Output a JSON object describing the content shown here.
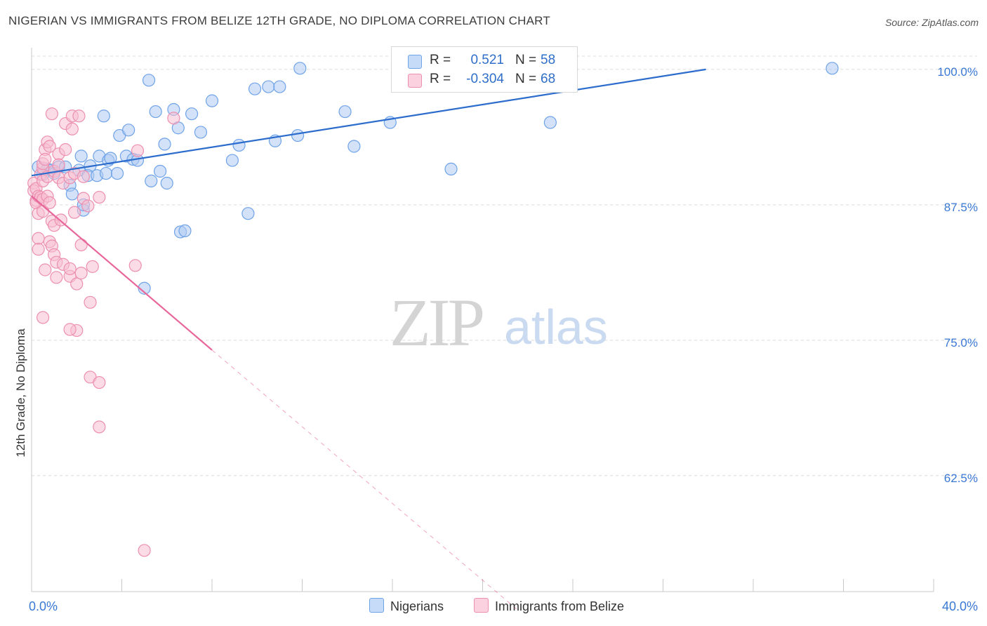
{
  "title": "NIGERIAN VS IMMIGRANTS FROM BELIZE 12TH GRADE, NO DIPLOMA CORRELATION CHART",
  "source": "Source: ZipAtlas.com",
  "watermark": {
    "zip": "ZIP",
    "atlas": "atlas"
  },
  "legend": {
    "r_label": "R =",
    "n_label": "N =",
    "rows": [
      {
        "r": "0.521",
        "n": "58",
        "color": "#6fa3e8"
      },
      {
        "r": "-0.304",
        "n": "68",
        "color": "#f29ab8"
      }
    ]
  },
  "colors": {
    "blue_fill": "#aecbf2",
    "blue_stroke": "#6fa3e8",
    "blue_line": "#2b6ccc",
    "pink_fill": "#f7bfd2",
    "pink_stroke": "#ec8fb0",
    "pink_line": "#e8679a",
    "axis_text": "#3a78d4",
    "grid": "#dcdcdc"
  },
  "chart_data": {
    "type": "scatter",
    "title": "NIGERIAN VS IMMIGRANTS FROM BELIZE 12TH GRADE, NO DIPLOMA CORRELATION CHART",
    "xlabel": "",
    "ylabel": "12th Grade, No Diploma",
    "xlim": [
      0,
      40
    ],
    "ylim": [
      51.8,
      102.0
    ],
    "x_tick_labels": [
      "0.0%",
      "40.0%"
    ],
    "y_ticks": [
      62.5,
      75.0,
      87.5,
      100.0
    ],
    "y_tick_labels": [
      "62.5%",
      "75.0%",
      "87.5%",
      "100.0%"
    ],
    "grid": true,
    "series": [
      {
        "name": "Nigerians",
        "r": 0.521,
        "n": 58,
        "trend": {
          "x": [
            0.0,
            29.9
          ],
          "y": [
            90.2,
            100.0
          ]
        },
        "points": [
          [
            0.3,
            91.0
          ],
          [
            0.5,
            90.3
          ],
          [
            0.7,
            90.8
          ],
          [
            0.9,
            90.7
          ],
          [
            1.2,
            91.0
          ],
          [
            1.5,
            91.0
          ],
          [
            1.7,
            89.3
          ],
          [
            1.8,
            88.5
          ],
          [
            2.1,
            90.7
          ],
          [
            2.2,
            92.0
          ],
          [
            2.3,
            87.0
          ],
          [
            2.3,
            87.5
          ],
          [
            2.6,
            91.1
          ],
          [
            2.5,
            90.2
          ],
          [
            2.9,
            90.2
          ],
          [
            3.0,
            92.0
          ],
          [
            3.2,
            95.7
          ],
          [
            3.3,
            90.4
          ],
          [
            3.4,
            91.6
          ],
          [
            3.5,
            91.8
          ],
          [
            3.8,
            90.4
          ],
          [
            3.9,
            93.9
          ],
          [
            4.3,
            94.4
          ],
          [
            4.2,
            92.0
          ],
          [
            4.5,
            91.7
          ],
          [
            4.7,
            91.6
          ],
          [
            5.2,
            99.0
          ],
          [
            5.3,
            89.7
          ],
          [
            5.5,
            96.1
          ],
          [
            5.7,
            90.6
          ],
          [
            5.9,
            93.1
          ],
          [
            6.0,
            89.5
          ],
          [
            6.3,
            96.3
          ],
          [
            6.5,
            94.6
          ],
          [
            6.6,
            85.0
          ],
          [
            6.8,
            85.1
          ],
          [
            7.1,
            95.9
          ],
          [
            7.5,
            94.2
          ],
          [
            5.0,
            79.8
          ],
          [
            8.0,
            97.1
          ],
          [
            8.9,
            91.6
          ],
          [
            9.2,
            93.0
          ],
          [
            9.6,
            86.7
          ],
          [
            9.9,
            98.2
          ],
          [
            10.5,
            98.4
          ],
          [
            10.8,
            93.4
          ],
          [
            11.0,
            98.4
          ],
          [
            11.8,
            93.9
          ],
          [
            11.9,
            100.1
          ],
          [
            13.9,
            96.1
          ],
          [
            14.3,
            92.9
          ],
          [
            15.9,
            95.1
          ],
          [
            18.6,
            90.8
          ],
          [
            16.4,
            100.1
          ],
          [
            18.0,
            100.1
          ],
          [
            23.0,
            95.1
          ],
          [
            35.5,
            100.1
          ],
          [
            1.0,
            90.4
          ]
        ]
      },
      {
        "name": "Immigrants from Belize",
        "r": -0.304,
        "n": 68,
        "trend": {
          "x": [
            0.0,
            8.0
          ],
          "y": [
            88.3,
            74.1
          ]
        },
        "trend_dashed": {
          "x": [
            8.0,
            21.5
          ],
          "y": [
            74.1,
            50.2
          ]
        },
        "points": [
          [
            0.1,
            89.5
          ],
          [
            0.1,
            88.8
          ],
          [
            0.2,
            87.9
          ],
          [
            0.2,
            89.0
          ],
          [
            0.2,
            87.7
          ],
          [
            0.3,
            88.3
          ],
          [
            0.3,
            86.7
          ],
          [
            0.3,
            84.4
          ],
          [
            0.3,
            83.4
          ],
          [
            0.4,
            90.3
          ],
          [
            0.4,
            88.2
          ],
          [
            0.5,
            89.7
          ],
          [
            0.5,
            88.0
          ],
          [
            0.5,
            90.9
          ],
          [
            0.5,
            91.3
          ],
          [
            0.6,
            92.6
          ],
          [
            0.6,
            91.7
          ],
          [
            0.5,
            86.9
          ],
          [
            0.5,
            77.1
          ],
          [
            0.6,
            81.5
          ],
          [
            0.7,
            93.3
          ],
          [
            0.7,
            90.1
          ],
          [
            0.7,
            88.3
          ],
          [
            0.8,
            92.9
          ],
          [
            0.8,
            87.7
          ],
          [
            0.8,
            84.1
          ],
          [
            0.9,
            83.7
          ],
          [
            0.9,
            95.9
          ],
          [
            0.9,
            86.0
          ],
          [
            1.0,
            85.6
          ],
          [
            1.0,
            82.9
          ],
          [
            1.0,
            90.6
          ],
          [
            1.1,
            82.2
          ],
          [
            1.1,
            80.8
          ],
          [
            1.2,
            92.2
          ],
          [
            1.2,
            90.0
          ],
          [
            1.2,
            91.2
          ],
          [
            1.3,
            86.1
          ],
          [
            1.4,
            89.5
          ],
          [
            1.4,
            82.0
          ],
          [
            1.5,
            92.6
          ],
          [
            1.5,
            95.0
          ],
          [
            1.7,
            90.0
          ],
          [
            1.7,
            80.9
          ],
          [
            1.7,
            81.6
          ],
          [
            1.8,
            94.5
          ],
          [
            1.8,
            95.7
          ],
          [
            1.9,
            90.4
          ],
          [
            1.9,
            86.8
          ],
          [
            2.0,
            80.2
          ],
          [
            2.1,
            95.7
          ],
          [
            2.0,
            75.9
          ],
          [
            1.7,
            76.0
          ],
          [
            2.2,
            83.8
          ],
          [
            2.3,
            88.1
          ],
          [
            2.5,
            87.4
          ],
          [
            2.3,
            90.1
          ],
          [
            2.2,
            81.2
          ],
          [
            2.6,
            78.5
          ],
          [
            2.7,
            81.8
          ],
          [
            2.6,
            71.6
          ],
          [
            3.0,
            71.1
          ],
          [
            3.0,
            67.0
          ],
          [
            4.6,
            81.9
          ],
          [
            4.7,
            92.5
          ],
          [
            6.3,
            95.5
          ],
          [
            3.0,
            88.2
          ],
          [
            5.0,
            55.6
          ]
        ]
      }
    ]
  },
  "bottom_legend": [
    {
      "label": "Nigerians"
    },
    {
      "label": "Immigrants from Belize"
    }
  ]
}
